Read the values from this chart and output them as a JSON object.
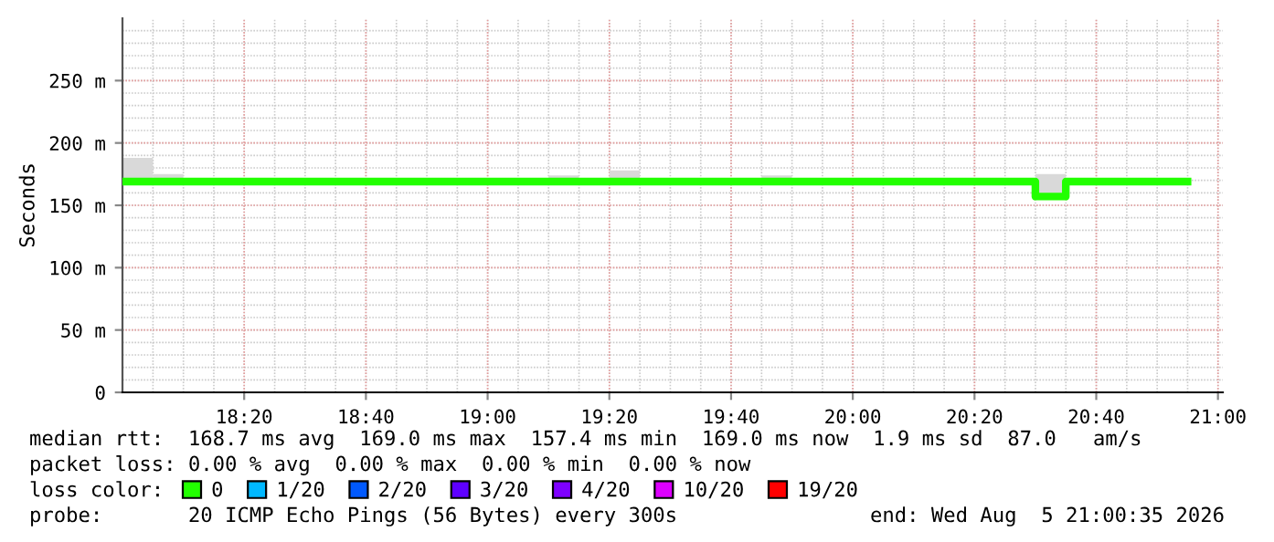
{
  "chart_data": {
    "type": "step",
    "ylabel": "Seconds",
    "x": [
      18.0,
      18.0833,
      18.1667,
      18.25,
      18.3333,
      18.4167,
      18.5,
      18.5833,
      18.6667,
      18.75,
      18.8333,
      18.9167,
      19.0,
      19.0833,
      19.1667,
      19.25,
      19.3333,
      19.4167,
      19.5,
      19.5833,
      19.6667,
      19.75,
      19.8333,
      19.9167,
      20.0,
      20.0833,
      20.1667,
      20.25,
      20.3333,
      20.4167,
      20.5,
      20.5833,
      20.6667,
      20.75,
      20.8333,
      20.9167
    ],
    "series": [
      {
        "name": "0",
        "color": "#22ff00",
        "values": [
          169,
          169,
          169,
          169,
          169,
          169,
          169,
          169,
          169,
          169,
          169,
          169,
          169,
          169,
          169,
          169,
          169,
          169,
          169,
          169,
          169,
          169,
          169,
          169,
          169,
          169,
          169,
          169,
          169,
          169,
          157,
          169,
          169,
          169,
          169,
          169
        ],
        "lower": [
          167,
          167,
          167,
          167,
          167,
          167,
          167,
          167,
          167,
          167,
          167,
          167,
          167,
          167,
          167,
          167,
          167,
          167,
          167,
          167,
          167,
          167,
          167,
          167,
          167,
          167,
          167,
          167,
          167,
          167,
          155,
          167,
          167,
          167,
          167,
          null
        ],
        "upper": [
          188,
          175,
          170,
          172,
          170,
          170,
          172,
          170,
          170,
          170,
          170,
          172,
          170,
          170,
          174,
          170,
          178,
          170,
          170,
          170,
          170,
          174,
          170,
          170,
          172,
          170,
          170,
          170,
          170,
          170,
          175,
          170,
          170,
          172,
          170,
          null
        ]
      },
      {
        "name": "1/20",
        "color": "#00b8ff",
        "values": [
          null,
          null,
          null,
          null,
          null,
          null,
          null,
          null,
          null,
          null,
          null,
          null,
          null,
          null,
          null,
          null,
          null,
          null,
          null,
          null,
          null,
          null,
          null,
          null,
          null,
          null,
          null,
          null,
          null,
          null,
          null,
          null,
          null,
          null,
          null,
          null
        ]
      },
      {
        "name": "2/20",
        "color": "#0059ff",
        "values": [
          null,
          null,
          null,
          null,
          null,
          null,
          null,
          null,
          null,
          null,
          null,
          null,
          null,
          null,
          null,
          null,
          null,
          null,
          null,
          null,
          null,
          null,
          null,
          null,
          null,
          null,
          null,
          null,
          null,
          null,
          null,
          null,
          null,
          null,
          null,
          null
        ]
      },
      {
        "name": "3/20",
        "color": "#5e00ff",
        "values": [
          null,
          null,
          null,
          null,
          null,
          null,
          null,
          null,
          null,
          null,
          null,
          null,
          null,
          null,
          null,
          null,
          null,
          null,
          null,
          null,
          null,
          null,
          null,
          null,
          null,
          null,
          null,
          null,
          null,
          null,
          null,
          null,
          null,
          null,
          null,
          null
        ]
      },
      {
        "name": "4/20",
        "color": "#7e00ff",
        "values": [
          null,
          null,
          null,
          null,
          null,
          null,
          null,
          null,
          null,
          null,
          null,
          null,
          null,
          null,
          null,
          null,
          null,
          null,
          null,
          null,
          null,
          null,
          null,
          null,
          null,
          null,
          null,
          null,
          null,
          null,
          null,
          null,
          null,
          null,
          null,
          null
        ]
      },
      {
        "name": "10/20",
        "color": "#dd00ff",
        "values": [
          null,
          null,
          null,
          null,
          null,
          null,
          null,
          null,
          null,
          null,
          null,
          null,
          null,
          null,
          null,
          null,
          null,
          null,
          null,
          null,
          null,
          null,
          null,
          null,
          null,
          null,
          null,
          null,
          null,
          null,
          null,
          null,
          null,
          null,
          null,
          null
        ]
      },
      {
        "name": "19/20",
        "color": "#ff0000",
        "values": [
          null,
          null,
          null,
          null,
          null,
          null,
          null,
          null,
          null,
          null,
          null,
          null,
          null,
          null,
          null,
          null,
          null,
          null,
          null,
          null,
          null,
          null,
          null,
          null,
          null,
          null,
          null,
          null,
          null,
          null,
          null,
          null,
          null,
          null,
          null,
          null
        ]
      }
    ],
    "xlim": [
      18.0,
      21.0133
    ],
    "xticks": [
      {
        "value": 18.3333,
        "label": "18:20"
      },
      {
        "value": 18.6667,
        "label": "18:40"
      },
      {
        "value": 19.0,
        "label": "19:00"
      },
      {
        "value": 19.3333,
        "label": "19:20"
      },
      {
        "value": 19.6667,
        "label": "19:40"
      },
      {
        "value": 20.0,
        "label": "20:00"
      },
      {
        "value": 20.3333,
        "label": "20:20"
      },
      {
        "value": 20.6667,
        "label": "20:40"
      },
      {
        "value": 21.0,
        "label": "21:00"
      }
    ],
    "ylim": [
      0,
      300
    ],
    "yticks": [
      0,
      {
        "value": 50,
        "label": "50 m"
      },
      {
        "value": 100,
        "label": "100 m"
      },
      {
        "value": 150,
        "label": "150 m"
      },
      {
        "value": 200,
        "label": "200 m"
      },
      {
        "value": 250,
        "label": "250 m"
      }
    ],
    "grid": true,
    "legend": "bottom",
    "legend_title": "loss color:",
    "annotations": [
      "median rtt:  168.7 ms avg  169.0 ms max  157.4 ms min  169.0 ms now  1.9 ms sd  87.0   am/s",
      "packet loss: 0.00 % avg  0.00 % max  0.00 % min  0.00 % now",
      "probe:       20 ICMP Echo Pings (56 Bytes) every 300s",
      "end: Wed Aug  5 21:00:35 2026"
    ]
  }
}
